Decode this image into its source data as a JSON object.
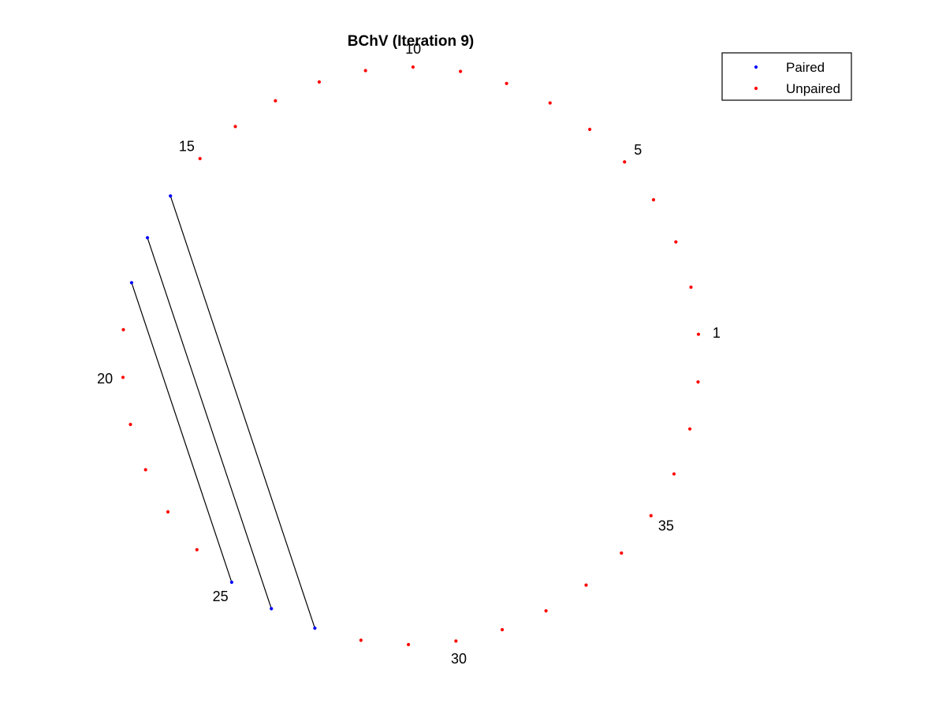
{
  "chart_data": {
    "type": "scatter",
    "title": "BChV (Iteration 9)",
    "layout": "circular (arc diagram)",
    "n_nodes": 38,
    "index_labels": [
      1,
      5,
      10,
      15,
      20,
      25,
      30,
      35
    ],
    "legend": {
      "placement": "top-right",
      "entries": [
        {
          "name": "Paired",
          "color": "#0000ff",
          "marker": "dot"
        },
        {
          "name": "Unpaired",
          "color": "#ff0000",
          "marker": "dot"
        }
      ]
    },
    "pairs": [
      [
        16,
        27
      ],
      [
        17,
        26
      ],
      [
        18,
        25
      ]
    ],
    "link_color": "#000000",
    "axes_visible": false,
    "grid": false
  }
}
